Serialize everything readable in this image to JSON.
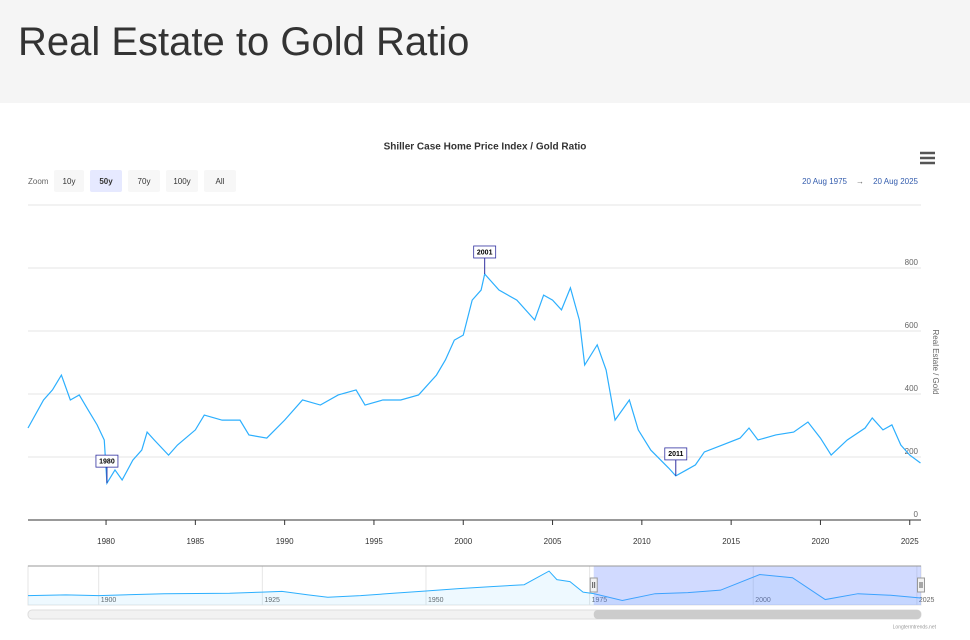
{
  "header": {
    "title": "Real Estate to Gold Ratio"
  },
  "range_selector": {
    "label": "Zoom",
    "buttons": [
      "10y",
      "50y",
      "70y",
      "100y",
      "All"
    ],
    "selected": 1,
    "from": "20 Aug 1975",
    "arrow": "→",
    "to": "20 Aug 2025"
  },
  "credit": "Longtermtrends.net",
  "chart_data": [
    {
      "type": "line",
      "title": "Shiller Case Home Price Index / Gold Ratio",
      "y_label": "Real Estate / Gold",
      "series": [
        {
          "name": "Real Estate / Gold",
          "color": "#2caffe",
          "x": [
            1975.63,
            1976.5,
            1977.0,
            1977.5,
            1978.0,
            1978.5,
            1979.0,
            1979.5,
            1979.9,
            1980.05,
            1980.5,
            1980.9,
            1981.5,
            1982.0,
            1982.3,
            1982.7,
            1983.5,
            1984.0,
            1985.0,
            1985.5,
            1986.5,
            1987.5,
            1988.0,
            1989.0,
            1990.0,
            1991.0,
            1992.0,
            1993.0,
            1994.0,
            1994.5,
            1995.5,
            1996.5,
            1997.5,
            1998.5,
            1999.0,
            1999.5,
            2000.0,
            2000.5,
            2001.0,
            2001.2,
            2002.0,
            2003.0,
            2004.0,
            2004.5,
            2005.0,
            2005.5,
            2006.0,
            2006.5,
            2006.8,
            2007.5,
            2008.0,
            2008.5,
            2009.3,
            2009.8,
            2010.5,
            2011.5,
            2011.9,
            2012.5,
            2013.0,
            2013.5,
            2014.5,
            2015.5,
            2016.0,
            2016.5,
            2017.5,
            2018.5,
            2019.3,
            2020.0,
            2020.6,
            2021.5,
            2022.5,
            2022.9,
            2023.5,
            2024.0,
            2024.5,
            2025.0,
            2025.6
          ],
          "values": [
            292,
            381,
            413,
            460,
            381,
            397,
            349,
            302,
            254,
            117,
            159,
            127,
            190,
            222,
            279,
            254,
            206,
            238,
            286,
            333,
            317,
            317,
            270,
            260,
            317,
            381,
            365,
            397,
            413,
            365,
            381,
            381,
            397,
            460,
            508,
            571,
            587,
            698,
            730,
            781,
            730,
            698,
            635,
            714,
            698,
            667,
            737,
            635,
            492,
            556,
            476,
            317,
            381,
            286,
            222,
            165,
            140,
            159,
            175,
            216,
            238,
            260,
            292,
            254,
            270,
            279,
            311,
            260,
            206,
            254,
            292,
            324,
            286,
            302,
            238,
            206,
            181
          ]
        }
      ],
      "annotations": [
        {
          "label": "1980",
          "x": 1980.05,
          "y": 117
        },
        {
          "label": "2001",
          "x": 2001.2,
          "y": 781
        },
        {
          "label": "2011",
          "x": 2011.9,
          "y": 140
        }
      ],
      "xlim": [
        1975.63,
        2025.63
      ],
      "xticks": [
        1980,
        1985,
        1990,
        1995,
        2000,
        2005,
        2010,
        2015,
        2020,
        2025
      ],
      "ylim": [
        0,
        1000
      ],
      "yticks": [
        0,
        200,
        400,
        600,
        800
      ],
      "grid": true
    },
    {
      "type": "area",
      "name": "navigator",
      "series": [
        {
          "color": "#2caffe",
          "x": [
            1889.2,
            1895,
            1900,
            1910,
            1920,
            1925,
            1928,
            1932,
            1935,
            1940,
            1945,
            1950,
            1955,
            1960,
            1965,
            1968.8,
            1970,
            1972,
            1974,
            1975.63,
            1980,
            1985,
            1990,
            1995,
            2001,
            2006,
            2011,
            2016,
            2021,
            2025.6
          ],
          "values": [
            240,
            260,
            240,
            290,
            300,
            330,
            350,
            260,
            200,
            240,
            300,
            360,
            420,
            470,
            520,
            870,
            650,
            600,
            330,
            292,
            117,
            290,
            317,
            380,
            781,
            700,
            140,
            290,
            250,
            181
          ]
        }
      ],
      "xlim": [
        1889.2,
        2025.63
      ],
      "xticks": [
        1900,
        1925,
        1950,
        1975,
        2000,
        2025
      ],
      "ylim": [
        0,
        1000
      ]
    }
  ]
}
